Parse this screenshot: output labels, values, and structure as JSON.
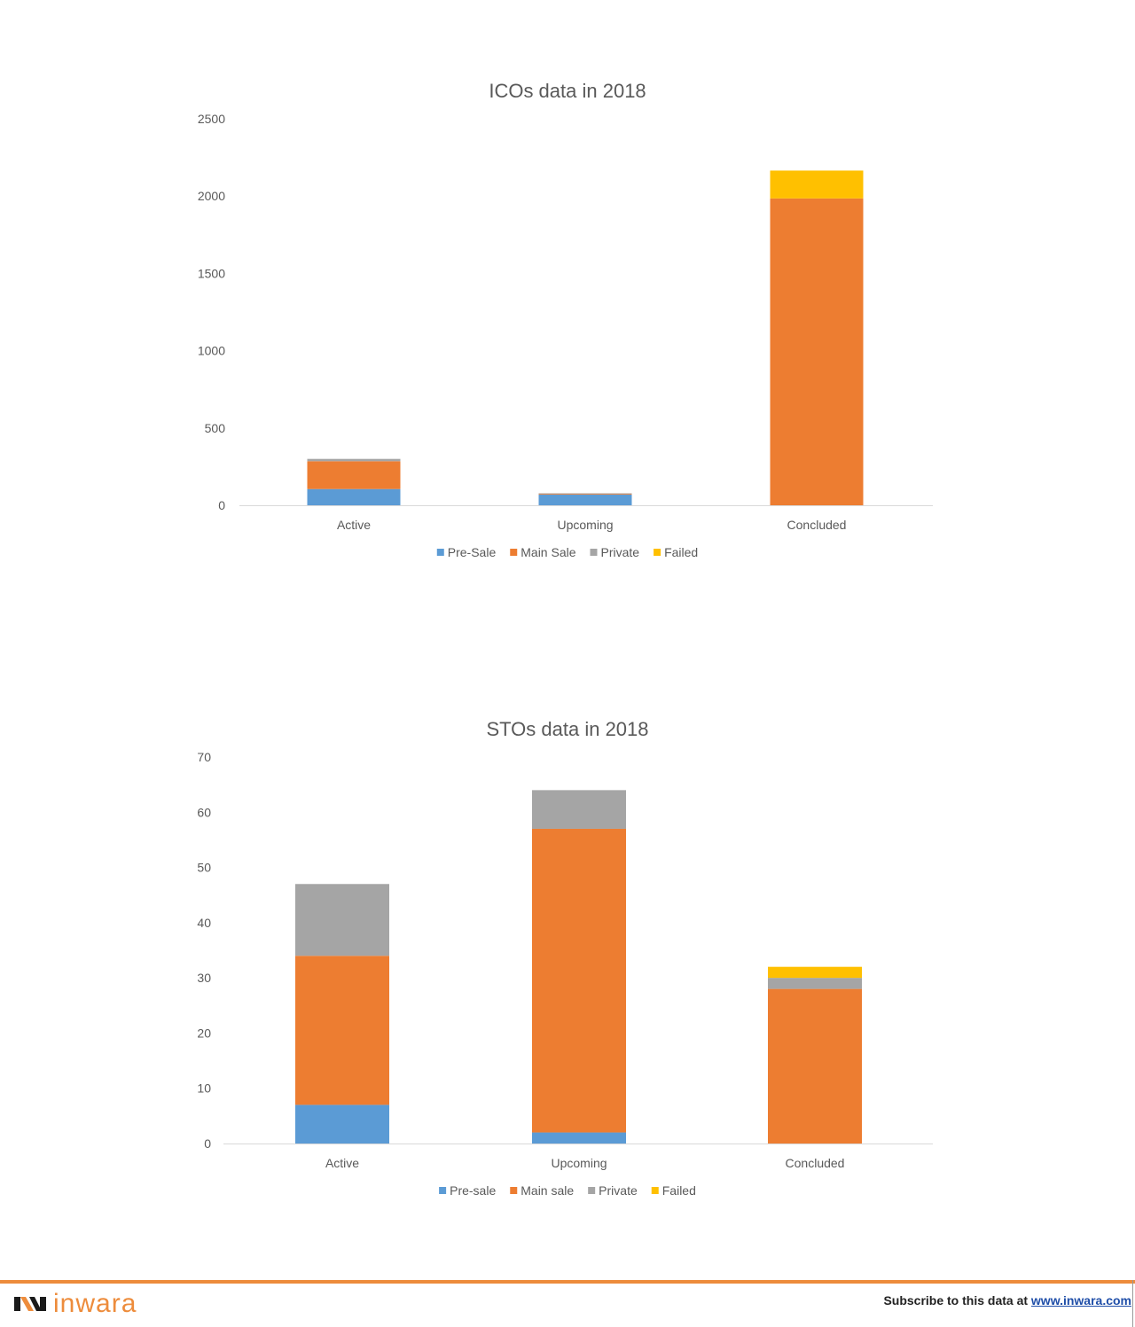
{
  "charts": [
    {
      "id": "icos",
      "type": "bar",
      "stacked": true,
      "title": "ICOs data in 2018",
      "categories": [
        "Active",
        "Upcoming",
        "Concluded"
      ],
      "series": [
        {
          "name": "Pre-Sale",
          "color": "#5b9bd5",
          "values": [
            105,
            70,
            0
          ]
        },
        {
          "name": "Main Sale",
          "color": "#ed7d31",
          "values": [
            180,
            5,
            1985
          ]
        },
        {
          "name": "Private",
          "color": "#a5a5a5",
          "values": [
            15,
            3,
            0
          ]
        },
        {
          "name": "Failed",
          "color": "#ffc000",
          "values": [
            0,
            0,
            180
          ]
        }
      ],
      "ylim": [
        0,
        2500
      ],
      "yticks": [
        0,
        500,
        1000,
        1500,
        2000,
        2500
      ],
      "grid": false,
      "legend_position": "bottom"
    },
    {
      "id": "stos",
      "type": "bar",
      "stacked": true,
      "title": "STOs data in 2018",
      "categories": [
        "Active",
        "Upcoming",
        "Concluded"
      ],
      "series": [
        {
          "name": "Pre-sale",
          "color": "#5b9bd5",
          "values": [
            7,
            2,
            0
          ]
        },
        {
          "name": "Main sale",
          "color": "#ed7d31",
          "values": [
            27,
            55,
            28
          ]
        },
        {
          "name": "Private",
          "color": "#a5a5a5",
          "values": [
            13,
            7,
            2
          ]
        },
        {
          "name": "Failed",
          "color": "#ffc000",
          "values": [
            0,
            0,
            2
          ]
        }
      ],
      "ylim": [
        0,
        70
      ],
      "yticks": [
        0,
        10,
        20,
        30,
        40,
        50,
        60,
        70
      ],
      "grid": false,
      "legend_position": "bottom"
    }
  ],
  "footer": {
    "logo_text": "inwara",
    "subscribe_text": "Subscribe to this data at ",
    "subscribe_link": "www.inwara.com",
    "accent_color": "#ed8c3c"
  }
}
